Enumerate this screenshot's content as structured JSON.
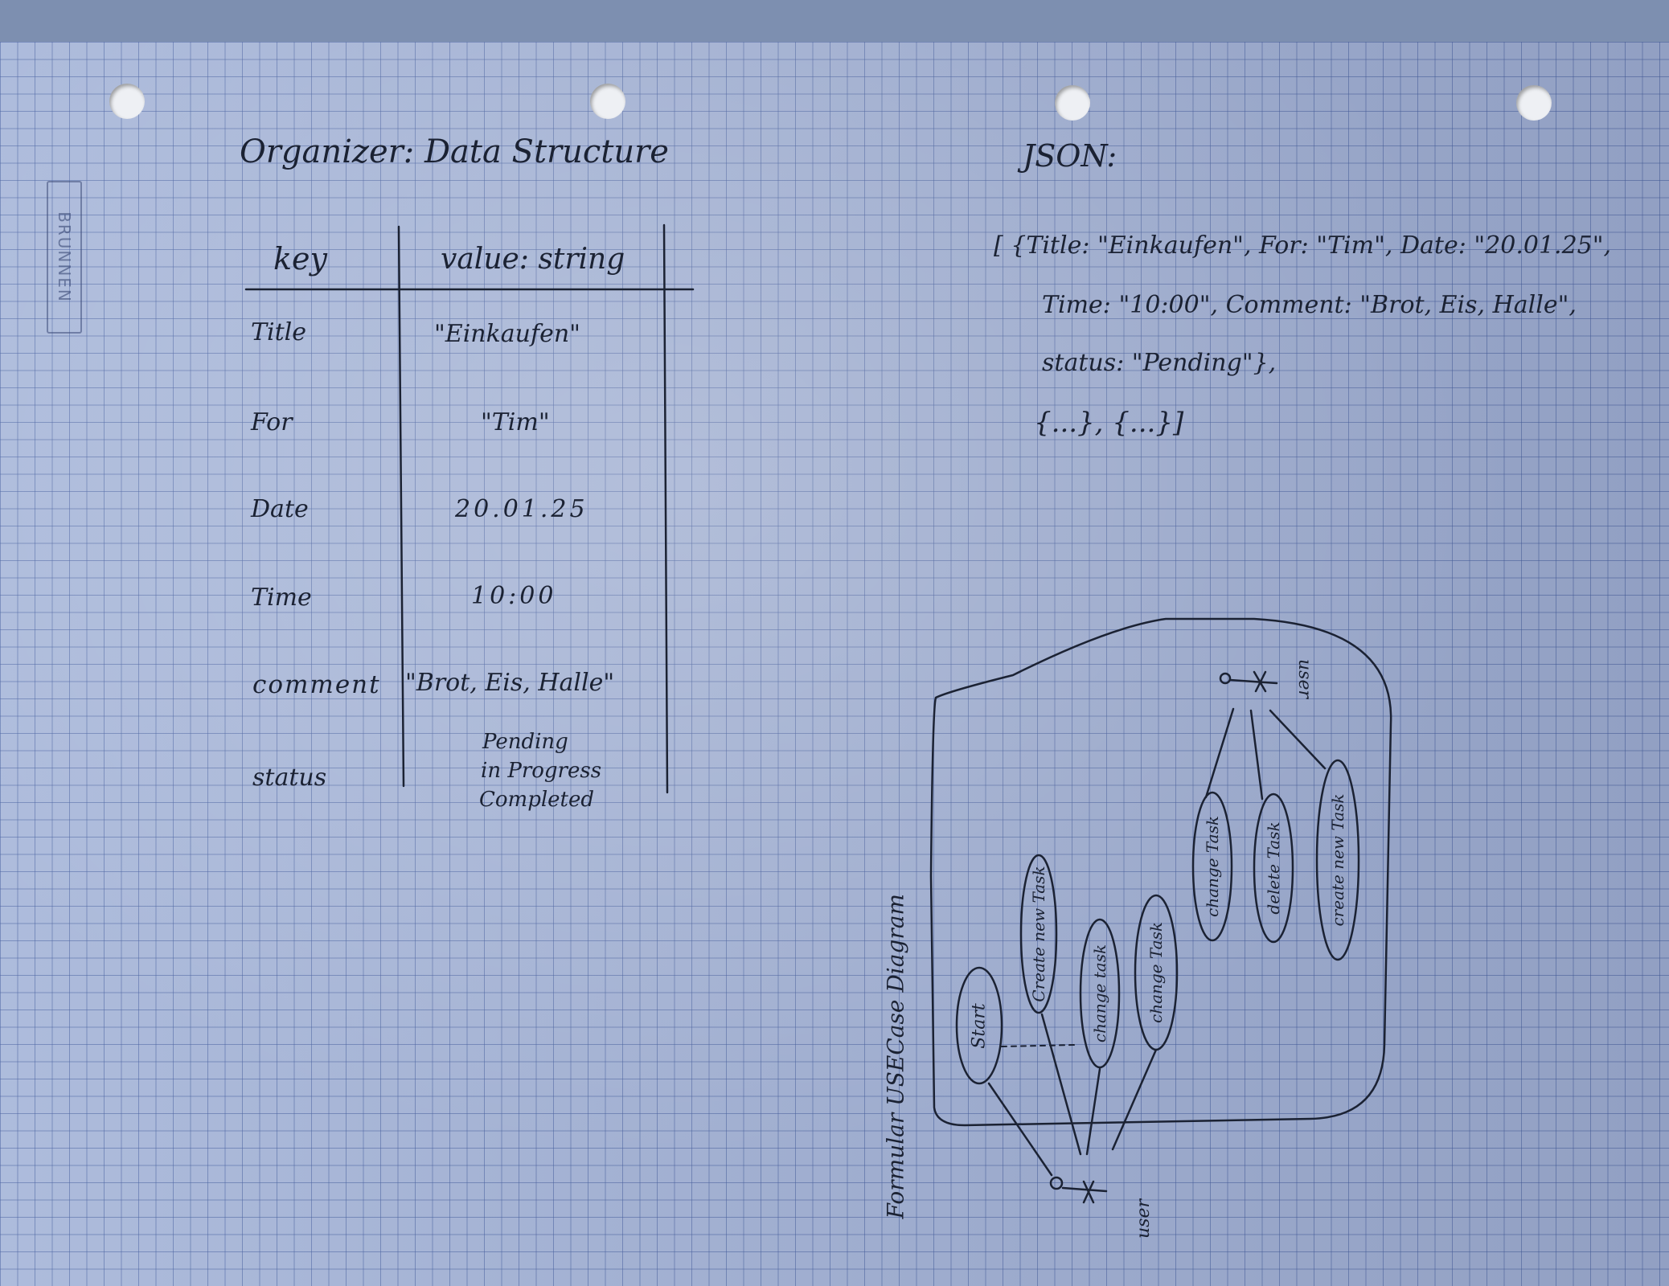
{
  "left": {
    "title": "Organizer: Data Structure",
    "brand": "BRUNNEN",
    "table": {
      "headers": [
        "key",
        "value: string"
      ],
      "rows": [
        {
          "key": "Title",
          "value": "\"Einkaufen\""
        },
        {
          "key": "For",
          "value": "\"Tim\""
        },
        {
          "key": "Date",
          "value": "20.01.25"
        },
        {
          "key": "Time",
          "value": "10:00"
        },
        {
          "key": "comment",
          "value": "\"Brot, Eis, Halle\""
        },
        {
          "key": "status",
          "value": [
            "Pending",
            "in Progress",
            "Completed"
          ]
        }
      ]
    }
  },
  "json": {
    "label": "JSON:",
    "lines": [
      "[ {Title: \"Einkaufen\", For: \"Tim\", Date: \"20.01.25\",",
      "Time: \"10:00\", Comment: \"Brot, Eis, Halle\",",
      "status: \"Pending\"},",
      "{...}, {...}]"
    ]
  },
  "diagram": {
    "caption": "Formular USECase Diagram",
    "actor_top": "user",
    "actor_bottom": "user",
    "use_cases_bottom": [
      "Start",
      "Create new Task",
      "change task",
      "change Task"
    ],
    "use_cases_top": [
      "change Task",
      "delete Task",
      "create new Task"
    ]
  }
}
